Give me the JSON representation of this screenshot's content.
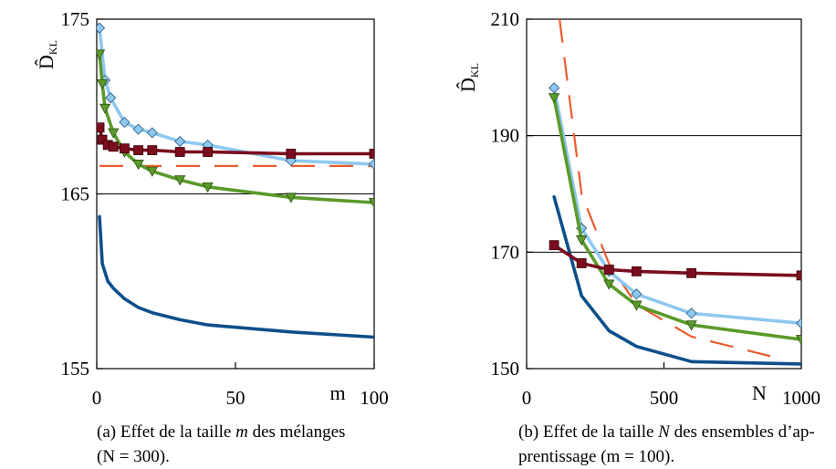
{
  "chart_data": [
    {
      "type": "line",
      "panel": "a",
      "caption_label": "(a)",
      "caption_pre": "Effet de la taille ",
      "caption_var": "m",
      "caption_post": " des mélanges",
      "caption_line2": "(N = 300).",
      "xlabel": "m",
      "ylabel": "D̂",
      "ylabel_sub": "KL",
      "xlim": [
        0,
        100
      ],
      "ylim": [
        155,
        175
      ],
      "xticks": [
        "0",
        "50",
        "100"
      ],
      "yticks": [
        "155",
        "165",
        "175"
      ],
      "xtick_values": [
        0,
        50,
        100
      ],
      "ytick_values": [
        155,
        165,
        175
      ],
      "gridlines_y": [
        165
      ],
      "series": [
        {
          "color": "#0d4f8b",
          "marker": "none",
          "dashed": false,
          "x": [
            1,
            2,
            4,
            6,
            10,
            15,
            20,
            30,
            40,
            70,
            100
          ],
          "y": [
            163.7,
            161,
            160,
            159.6,
            159,
            158.5,
            158.2,
            157.8,
            157.5,
            157.1,
            156.8
          ]
        },
        {
          "color": "#7b0d1e",
          "marker": "square",
          "dashed": false,
          "x": [
            1,
            2,
            4,
            6,
            10,
            15,
            20,
            30,
            40,
            70,
            100
          ],
          "y": [
            168.8,
            168.1,
            167.8,
            167.7,
            167.6,
            167.5,
            167.5,
            167.4,
            167.4,
            167.3,
            167.3
          ]
        },
        {
          "color": "#8ec8f0",
          "marker": "diamond",
          "dashed": false,
          "x": [
            1,
            3,
            5,
            10,
            15,
            20,
            30,
            40,
            70,
            100
          ],
          "y": [
            174.5,
            171.5,
            170.5,
            169.1,
            168.7,
            168.5,
            168,
            167.8,
            166.9,
            166.7
          ]
        },
        {
          "color": "#5a9a2a",
          "marker": "triangle",
          "dashed": false,
          "x": [
            1,
            2,
            3,
            6,
            10,
            15,
            20,
            30,
            40,
            70,
            100
          ],
          "y": [
            173,
            171.3,
            169.9,
            168.5,
            167.4,
            166.7,
            166.3,
            165.8,
            165.4,
            164.8,
            164.5
          ]
        },
        {
          "color": "#ea5c2e",
          "marker": "none",
          "dashed": true,
          "x": [
            1,
            100
          ],
          "y": [
            166.6,
            166.6
          ]
        }
      ]
    },
    {
      "type": "line",
      "panel": "b",
      "caption_label": "(b)",
      "caption_pre": "Effet de la taille ",
      "caption_var": "N",
      "caption_post": " des ensembles d’ap-",
      "caption_line2": "prentissage (m = 100).",
      "xlabel": "N",
      "ylabel": "D̂",
      "ylabel_sub": "KL",
      "xlim": [
        0,
        1000
      ],
      "ylim": [
        150,
        210
      ],
      "xticks": [
        "0",
        "500",
        "1000"
      ],
      "yticks": [
        "150",
        "170",
        "190",
        "210"
      ],
      "xtick_values": [
        0,
        500,
        1000
      ],
      "ytick_values": [
        150,
        170,
        190,
        210
      ],
      "gridlines_y": [
        170,
        190
      ],
      "series": [
        {
          "color": "#0d4f8b",
          "marker": "none",
          "dashed": false,
          "x": [
            100,
            200,
            300,
            400,
            600,
            1000
          ],
          "y": [
            179.5,
            162.5,
            156.5,
            153.8,
            151.2,
            150.8
          ]
        },
        {
          "color": "#7b0d1e",
          "marker": "square",
          "dashed": false,
          "x": [
            100,
            200,
            300,
            400,
            600,
            1000
          ],
          "y": [
            171.2,
            168.1,
            167,
            166.7,
            166.4,
            166
          ]
        },
        {
          "color": "#8ec8f0",
          "marker": "diamond",
          "dashed": false,
          "x": [
            100,
            200,
            300,
            400,
            600,
            1000
          ],
          "y": [
            198.2,
            174.1,
            166.7,
            162.8,
            159.5,
            157.8
          ]
        },
        {
          "color": "#5a9a2a",
          "marker": "triangle",
          "dashed": false,
          "x": [
            100,
            200,
            300,
            400,
            600,
            1000
          ],
          "y": [
            196.5,
            172.1,
            164.5,
            160.9,
            157.5,
            155
          ]
        },
        {
          "color": "#ea5c2e",
          "marker": "none",
          "dashed": true,
          "x": [
            120,
            200,
            300,
            400,
            600,
            900
          ],
          "y": [
            210,
            180,
            168,
            161,
            155.5,
            152
          ]
        }
      ]
    }
  ]
}
